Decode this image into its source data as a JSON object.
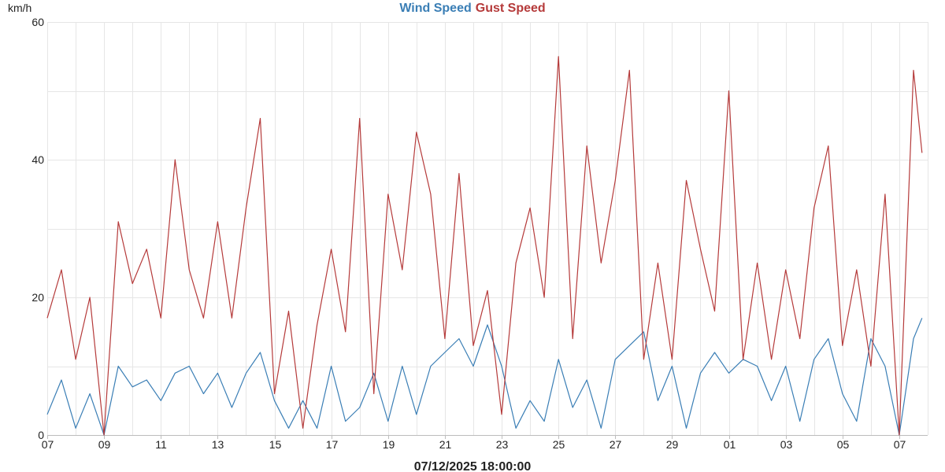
{
  "chart_data": {
    "type": "line",
    "legend_placement": "top-center",
    "grid": true,
    "xlabel": "07/12/2025 18:00:00",
    "ylabel": "km/h",
    "ylim": [
      0,
      60
    ],
    "y_ticks": [
      0,
      20,
      40,
      60
    ],
    "xlim": [
      0,
      31
    ],
    "x_ticks": [
      0,
      2,
      4,
      6,
      8,
      10,
      12,
      14,
      16,
      18,
      20,
      22,
      24,
      26,
      28,
      30
    ],
    "x_tick_labels": [
      "07",
      "09",
      "11",
      "13",
      "15",
      "17",
      "19",
      "21",
      "23",
      "25",
      "27",
      "29",
      "01",
      "03",
      "05",
      "07"
    ],
    "series": [
      {
        "name": "Wind Speed",
        "color": "#3a7eb5",
        "x": [
          0,
          0.5,
          1,
          1.5,
          2,
          2.5,
          3,
          3.5,
          4,
          4.5,
          5,
          5.5,
          6,
          6.5,
          7,
          7.5,
          8,
          8.5,
          9,
          9.5,
          10,
          10.5,
          11,
          11.5,
          12,
          12.5,
          13,
          13.5,
          14,
          14.5,
          15,
          15.5,
          16,
          16.5,
          17,
          17.5,
          18,
          18.5,
          19,
          19.5,
          20,
          20.5,
          21,
          21.5,
          22,
          22.5,
          23,
          23.5,
          24,
          24.5,
          25,
          25.5,
          26,
          26.5,
          27,
          27.5,
          28,
          28.5,
          29,
          29.5,
          30,
          30.5,
          30.8
        ],
        "y": [
          3,
          8,
          1,
          6,
          0,
          10,
          7,
          8,
          5,
          9,
          10,
          6,
          9,
          4,
          9,
          12,
          5,
          1,
          5,
          1,
          10,
          2,
          4,
          9,
          2,
          10,
          3,
          10,
          12,
          14,
          10,
          16,
          10,
          1,
          5,
          2,
          11,
          4,
          8,
          1,
          11,
          13,
          15,
          5,
          10,
          1,
          9,
          12,
          9,
          11,
          10,
          5,
          10,
          2,
          11,
          14,
          6,
          2,
          14,
          10,
          0,
          14,
          17
        ]
      },
      {
        "name": "Gust Speed",
        "color": "#b53a3a",
        "x": [
          0,
          0.5,
          1,
          1.5,
          2,
          2.5,
          3,
          3.5,
          4,
          4.5,
          5,
          5.5,
          6,
          6.5,
          7,
          7.5,
          8,
          8.5,
          9,
          9.5,
          10,
          10.5,
          11,
          11.5,
          12,
          12.5,
          13,
          13.5,
          14,
          14.5,
          15,
          15.5,
          16,
          16.5,
          17,
          17.5,
          18,
          18.5,
          19,
          19.5,
          20,
          20.5,
          21,
          21.5,
          22,
          22.5,
          23,
          23.5,
          24,
          24.5,
          25,
          25.5,
          26,
          26.5,
          27,
          27.5,
          28,
          28.5,
          29,
          29.5,
          30,
          30.5,
          30.8
        ],
        "y": [
          17,
          24,
          11,
          20,
          0,
          31,
          22,
          27,
          17,
          40,
          24,
          17,
          31,
          17,
          33,
          46,
          6,
          18,
          1,
          16,
          27,
          15,
          46,
          6,
          35,
          24,
          44,
          35,
          14,
          38,
          13,
          21,
          3,
          25,
          33,
          20,
          55,
          14,
          42,
          25,
          37,
          53,
          11,
          25,
          11,
          37,
          27,
          18,
          50,
          11,
          25,
          11,
          24,
          14,
          33,
          42,
          13,
          24,
          10,
          35,
          0,
          53,
          41
        ]
      }
    ]
  }
}
